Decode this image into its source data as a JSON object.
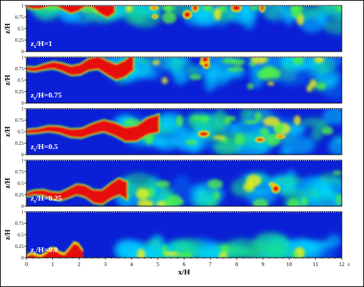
{
  "figure": {
    "x_axis": {
      "label": "x/H",
      "ticks": [
        "0",
        "1",
        "2",
        "3",
        "4",
        "5",
        "6",
        "7",
        "8",
        "9",
        "10",
        "11",
        "12"
      ],
      "corner_mark": "0"
    },
    "y_label": "z/H",
    "y_ticks": [
      "0",
      "0.25",
      "0.5",
      "0.75",
      "1"
    ],
    "colormap": [
      "#0a1fd6",
      "#0a6cf0",
      "#00d2ff",
      "#17e08a",
      "#4ff04a",
      "#f2f20a",
      "#ff8a00",
      "#e81010"
    ],
    "panels": [
      {
        "label": "z",
        "label_sub": "s",
        "label_rest": "/H=1",
        "source_height": 1.0
      },
      {
        "label": "z",
        "label_sub": "s",
        "label_rest": "/H=0.75",
        "source_height": 0.75
      },
      {
        "label": "z",
        "label_sub": "s",
        "label_rest": "/H=0.5",
        "source_height": 0.5
      },
      {
        "label": "z",
        "label_sub": "s",
        "label_rest": "/H=0.25",
        "source_height": 0.25
      },
      {
        "label": "z",
        "label_sub": "s",
        "label_rest": "/H=0.0",
        "source_height": 0.0
      }
    ]
  }
}
